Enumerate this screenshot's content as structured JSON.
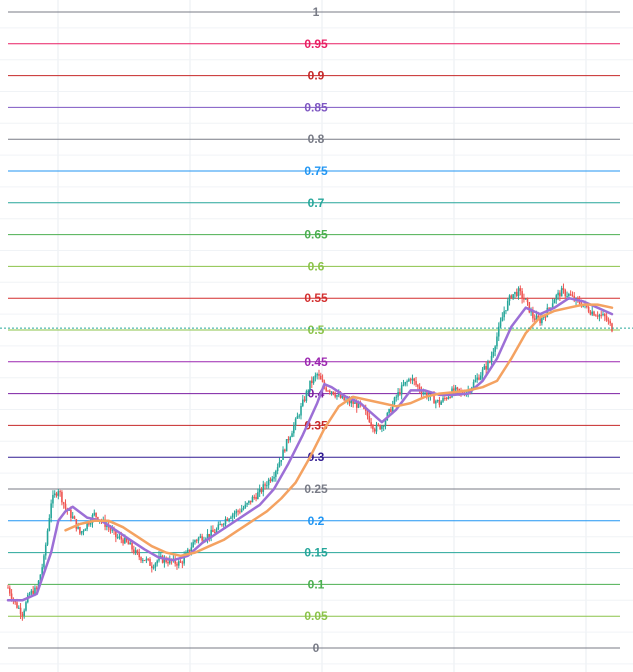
{
  "chart_data": {
    "type": "line",
    "title": "",
    "xlabel": "",
    "ylabel": "",
    "ylim": [
      0,
      1
    ],
    "grid": true,
    "fib_levels": [
      {
        "label": "1",
        "value": 1.0,
        "color": "#787b86"
      },
      {
        "label": "0.95",
        "value": 0.95,
        "color": "#e91e63"
      },
      {
        "label": "0.9",
        "value": 0.9,
        "color": "#c62828"
      },
      {
        "label": "0.85",
        "value": 0.85,
        "color": "#7e57c2"
      },
      {
        "label": "0.8",
        "value": 0.8,
        "color": "#787b86"
      },
      {
        "label": "0.75",
        "value": 0.75,
        "color": "#2196f3"
      },
      {
        "label": "0.7",
        "value": 0.7,
        "color": "#26a69a"
      },
      {
        "label": "0.65",
        "value": 0.65,
        "color": "#4caf50"
      },
      {
        "label": "0.6",
        "value": 0.6,
        "color": "#8bc34a"
      },
      {
        "label": "0.55",
        "value": 0.55,
        "color": "#d32f2f"
      },
      {
        "label": "0.5",
        "value": 0.5,
        "color": "#8bc34a"
      },
      {
        "label": "0.45",
        "value": 0.45,
        "color": "#9c27b0"
      },
      {
        "label": "0.4",
        "value": 0.4,
        "color": "#7b1fa2"
      },
      {
        "label": "0.35",
        "value": 0.35,
        "color": "#c62828"
      },
      {
        "label": "0.3",
        "value": 0.3,
        "color": "#311b92"
      },
      {
        "label": "0.25",
        "value": 0.25,
        "color": "#787b86"
      },
      {
        "label": "0.2",
        "value": 0.2,
        "color": "#2196f3"
      },
      {
        "label": "0.15",
        "value": 0.15,
        "color": "#26a69a"
      },
      {
        "label": "0.1",
        "value": 0.1,
        "color": "#4caf50"
      },
      {
        "label": "0.05",
        "value": 0.05,
        "color": "#8bc34a"
      },
      {
        "label": "0",
        "value": 0.0,
        "color": "#787b86"
      }
    ],
    "last_price": 0.503,
    "current_price_line_color": "#26a69a",
    "candle_up_color": "#26a69a",
    "candle_down_color": "#ef5350",
    "price_path": [
      [
        0,
        0.095
      ],
      [
        2,
        0.07
      ],
      [
        4,
        0.055
      ],
      [
        6,
        0.085
      ],
      [
        8,
        0.092
      ],
      [
        10,
        0.14
      ],
      [
        12,
        0.23
      ],
      [
        14,
        0.25
      ],
      [
        16,
        0.22
      ],
      [
        18,
        0.205
      ],
      [
        20,
        0.18
      ],
      [
        22,
        0.195
      ],
      [
        24,
        0.21
      ],
      [
        26,
        0.2
      ],
      [
        28,
        0.19
      ],
      [
        30,
        0.175
      ],
      [
        32,
        0.17
      ],
      [
        34,
        0.16
      ],
      [
        36,
        0.145
      ],
      [
        38,
        0.14
      ],
      [
        40,
        0.13
      ],
      [
        42,
        0.14
      ],
      [
        44,
        0.138
      ],
      [
        46,
        0.135
      ],
      [
        48,
        0.133
      ],
      [
        50,
        0.15
      ],
      [
        52,
        0.17
      ],
      [
        54,
        0.175
      ],
      [
        56,
        0.178
      ],
      [
        58,
        0.185
      ],
      [
        60,
        0.2
      ],
      [
        62,
        0.21
      ],
      [
        64,
        0.215
      ],
      [
        66,
        0.222
      ],
      [
        68,
        0.235
      ],
      [
        70,
        0.245
      ],
      [
        72,
        0.26
      ],
      [
        74,
        0.275
      ],
      [
        76,
        0.3
      ],
      [
        78,
        0.33
      ],
      [
        80,
        0.355
      ],
      [
        82,
        0.385
      ],
      [
        84,
        0.415
      ],
      [
        86,
        0.43
      ],
      [
        88,
        0.41
      ],
      [
        90,
        0.405
      ],
      [
        92,
        0.395
      ],
      [
        94,
        0.388
      ],
      [
        96,
        0.385
      ],
      [
        98,
        0.38
      ],
      [
        100,
        0.365
      ],
      [
        102,
        0.345
      ],
      [
        104,
        0.35
      ],
      [
        106,
        0.37
      ],
      [
        108,
        0.395
      ],
      [
        110,
        0.412
      ],
      [
        112,
        0.425
      ],
      [
        114,
        0.41
      ],
      [
        116,
        0.4
      ],
      [
        118,
        0.392
      ],
      [
        120,
        0.385
      ],
      [
        122,
        0.395
      ],
      [
        124,
        0.405
      ],
      [
        126,
        0.4
      ],
      [
        128,
        0.405
      ],
      [
        130,
        0.42
      ],
      [
        132,
        0.435
      ],
      [
        134,
        0.45
      ],
      [
        136,
        0.49
      ],
      [
        138,
        0.53
      ],
      [
        140,
        0.555
      ],
      [
        142,
        0.56
      ],
      [
        144,
        0.545
      ],
      [
        146,
        0.52
      ],
      [
        148,
        0.515
      ],
      [
        150,
        0.53
      ],
      [
        152,
        0.55
      ],
      [
        154,
        0.56
      ],
      [
        156,
        0.555
      ],
      [
        158,
        0.545
      ],
      [
        160,
        0.54
      ],
      [
        162,
        0.53
      ],
      [
        164,
        0.525
      ],
      [
        166,
        0.52
      ],
      [
        168,
        0.503
      ]
    ],
    "series": [
      {
        "values": [
          [
            0,
            0.075
          ],
          [
            4,
            0.075
          ],
          [
            8,
            0.085
          ],
          [
            12,
            0.15
          ],
          [
            14,
            0.2
          ],
          [
            16,
            0.215
          ],
          [
            18,
            0.222
          ],
          [
            22,
            0.205
          ],
          [
            26,
            0.2
          ],
          [
            30,
            0.185
          ],
          [
            34,
            0.17
          ],
          [
            38,
            0.155
          ],
          [
            42,
            0.142
          ],
          [
            46,
            0.138
          ],
          [
            50,
            0.145
          ],
          [
            54,
            0.165
          ],
          [
            58,
            0.18
          ],
          [
            62,
            0.195
          ],
          [
            66,
            0.21
          ],
          [
            70,
            0.225
          ],
          [
            74,
            0.25
          ],
          [
            78,
            0.29
          ],
          [
            82,
            0.335
          ],
          [
            86,
            0.385
          ],
          [
            88,
            0.415
          ],
          [
            90,
            0.41
          ],
          [
            94,
            0.395
          ],
          [
            98,
            0.385
          ],
          [
            100,
            0.375
          ],
          [
            104,
            0.355
          ],
          [
            108,
            0.375
          ],
          [
            112,
            0.405
          ],
          [
            116,
            0.405
          ],
          [
            120,
            0.398
          ],
          [
            124,
            0.398
          ],
          [
            128,
            0.4
          ],
          [
            132,
            0.42
          ],
          [
            136,
            0.455
          ],
          [
            140,
            0.505
          ],
          [
            144,
            0.535
          ],
          [
            148,
            0.525
          ],
          [
            152,
            0.535
          ],
          [
            156,
            0.55
          ],
          [
            160,
            0.545
          ],
          [
            164,
            0.535
          ],
          [
            168,
            0.525
          ]
        ],
        "color": "#9c6fd6"
      },
      {
        "values": [
          [
            16,
            0.185
          ],
          [
            20,
            0.195
          ],
          [
            24,
            0.2
          ],
          [
            28,
            0.2
          ],
          [
            32,
            0.19
          ],
          [
            36,
            0.175
          ],
          [
            40,
            0.16
          ],
          [
            44,
            0.15
          ],
          [
            48,
            0.145
          ],
          [
            52,
            0.15
          ],
          [
            56,
            0.16
          ],
          [
            60,
            0.17
          ],
          [
            64,
            0.185
          ],
          [
            68,
            0.2
          ],
          [
            72,
            0.215
          ],
          [
            76,
            0.235
          ],
          [
            80,
            0.26
          ],
          [
            84,
            0.3
          ],
          [
            88,
            0.345
          ],
          [
            92,
            0.38
          ],
          [
            96,
            0.395
          ],
          [
            100,
            0.39
          ],
          [
            104,
            0.385
          ],
          [
            108,
            0.38
          ],
          [
            112,
            0.385
          ],
          [
            116,
            0.395
          ],
          [
            120,
            0.4
          ],
          [
            124,
            0.402
          ],
          [
            128,
            0.405
          ],
          [
            132,
            0.41
          ],
          [
            136,
            0.42
          ],
          [
            140,
            0.455
          ],
          [
            144,
            0.495
          ],
          [
            148,
            0.52
          ],
          [
            152,
            0.53
          ],
          [
            156,
            0.535
          ],
          [
            160,
            0.54
          ],
          [
            164,
            0.54
          ],
          [
            168,
            0.535
          ]
        ],
        "color": "#f4a261"
      }
    ]
  }
}
